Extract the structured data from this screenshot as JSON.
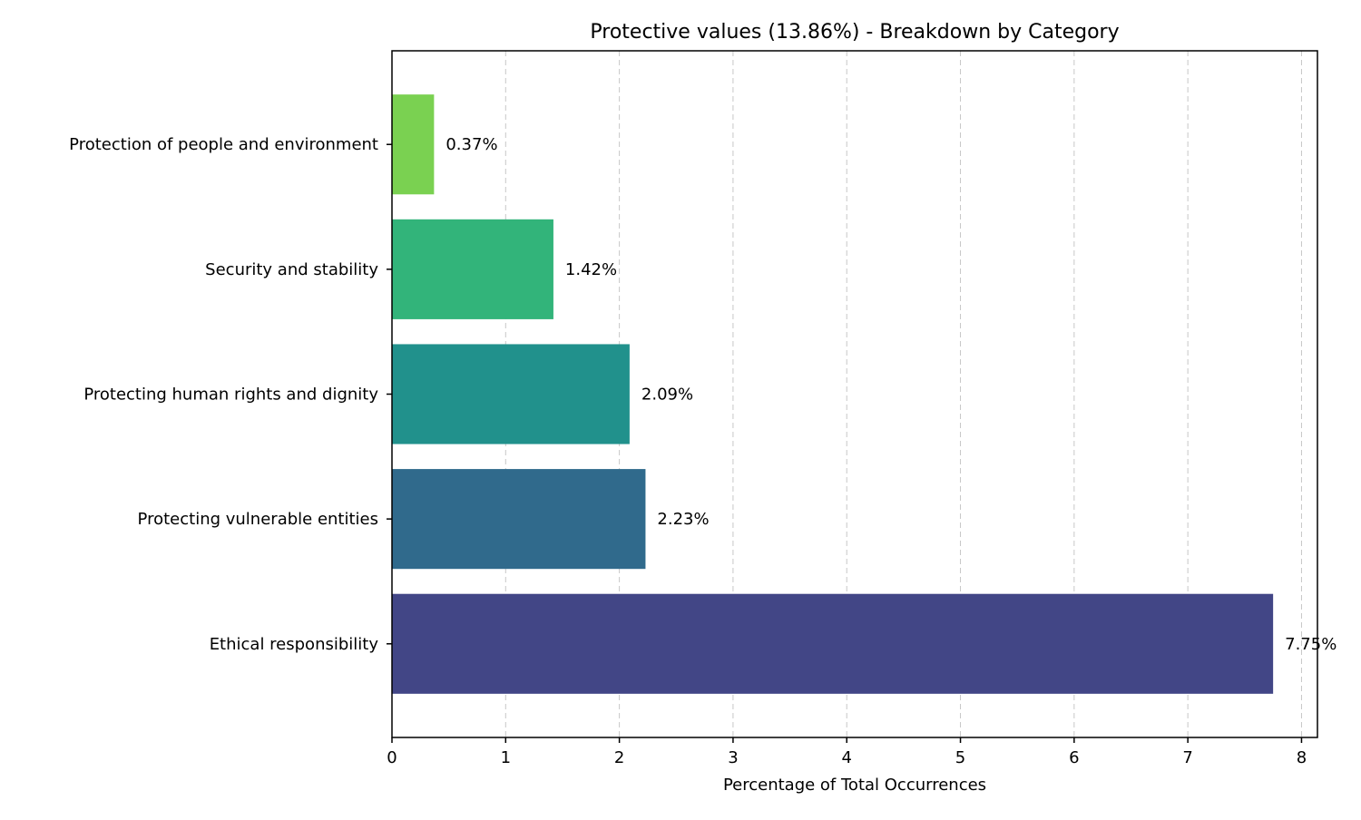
{
  "chart_data": {
    "type": "bar",
    "orientation": "horizontal",
    "title": "Protective values (13.86%) - Breakdown by Category",
    "xlabel": "Percentage of Total Occurrences",
    "ylabel": "",
    "xlim": [
      0,
      8.14
    ],
    "xticks": [
      0,
      1,
      2,
      3,
      4,
      5,
      6,
      7,
      8
    ],
    "categories": [
      "Ethical responsibility",
      "Protecting vulnerable entities",
      "Protecting human rights and dignity",
      "Security and stability",
      "Protection of people and environment"
    ],
    "values": [
      7.75,
      2.23,
      2.09,
      1.42,
      0.37
    ],
    "value_labels": [
      "7.75%",
      "2.23%",
      "2.09%",
      "1.42%",
      "0.37%"
    ],
    "colors": [
      "#424686",
      "#306a8c",
      "#21918c",
      "#32b47a",
      "#7ad151"
    ],
    "grid": {
      "x": true,
      "y": false
    },
    "legend": "none"
  }
}
